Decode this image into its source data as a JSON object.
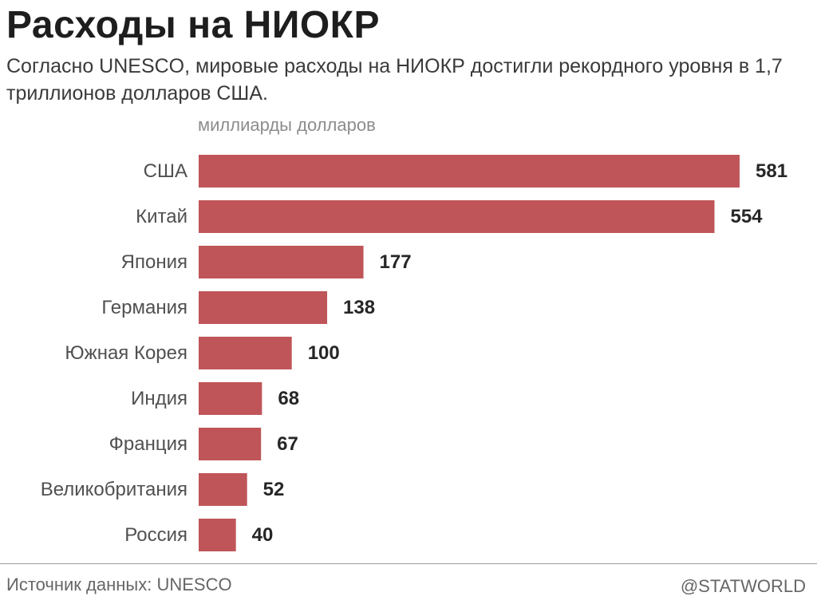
{
  "header": {
    "title": "Расходы на НИОКР",
    "subtitle": "Согласно UNESCO, мировые расходы на НИОКР достигли рекордного уровня в 1,7 триллионов долларов США.",
    "unit": "миллиарды долларов"
  },
  "footer": {
    "source": "Источник данных: UNESCO",
    "credit": "@STATWORLD"
  },
  "colors": {
    "bar": "#bf5559"
  },
  "chart_data": {
    "type": "bar",
    "orientation": "horizontal",
    "title": "Расходы на НИОКР",
    "subtitle": "Согласно UNESCO, мировые расходы на НИОКР достигли рекордного уровня в 1,7 триллионов долларов США.",
    "xlabel": "миллиарды долларов",
    "ylabel": "",
    "categories": [
      "США",
      "Китай",
      "Япония",
      "Германия",
      "Южная Корея",
      "Индия",
      "Франция",
      "Великобритания",
      "Россия"
    ],
    "values": [
      581,
      554,
      177,
      138,
      100,
      68,
      67,
      52,
      40
    ],
    "xlim": [
      0,
      581
    ],
    "grid": false,
    "legend": "none",
    "data_labels": true
  }
}
